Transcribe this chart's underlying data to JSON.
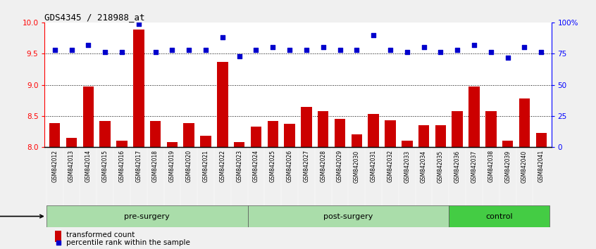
{
  "title": "GDS4345 / 218988_at",
  "samples": [
    "GSM842012",
    "GSM842013",
    "GSM842014",
    "GSM842015",
    "GSM842016",
    "GSM842017",
    "GSM842018",
    "GSM842019",
    "GSM842020",
    "GSM842021",
    "GSM842022",
    "GSM842023",
    "GSM842024",
    "GSM842025",
    "GSM842026",
    "GSM842027",
    "GSM842028",
    "GSM842029",
    "GSM842030",
    "GSM842031",
    "GSM842032",
    "GSM842033",
    "GSM842034",
    "GSM842035",
    "GSM842036",
    "GSM842037",
    "GSM842038",
    "GSM842039",
    "GSM842040",
    "GSM842041"
  ],
  "bar_values": [
    8.38,
    8.15,
    8.97,
    8.42,
    8.1,
    9.88,
    8.42,
    8.08,
    8.38,
    8.18,
    9.37,
    8.08,
    8.33,
    8.42,
    8.37,
    8.65,
    8.58,
    8.45,
    8.2,
    8.53,
    8.43,
    8.1,
    8.35,
    8.35,
    8.58,
    8.97,
    8.58,
    8.1,
    8.78,
    8.23
  ],
  "dot_values": [
    78,
    78,
    82,
    76,
    76,
    99,
    76,
    78,
    78,
    78,
    88,
    73,
    78,
    80,
    78,
    78,
    80,
    78,
    78,
    90,
    78,
    76,
    80,
    76,
    78,
    82,
    76,
    72,
    80,
    76
  ],
  "groups": [
    {
      "label": "pre-surgery",
      "start": 0,
      "end": 12,
      "color": "#aaddaa"
    },
    {
      "label": "post-surgery",
      "start": 12,
      "end": 24,
      "color": "#aaddaa"
    },
    {
      "label": "control",
      "start": 24,
      "end": 30,
      "color": "#44cc44"
    }
  ],
  "bar_color": "#cc0000",
  "dot_color": "#0000cc",
  "ylim_left": [
    8.0,
    10.0
  ],
  "ylim_right": [
    0,
    100
  ],
  "yticks_left": [
    8.0,
    8.5,
    9.0,
    9.5,
    10.0
  ],
  "yticks_right": [
    0,
    25,
    50,
    75,
    100
  ],
  "ytick_labels_right": [
    "0",
    "25",
    "50",
    "75",
    "100%"
  ],
  "grid_values": [
    8.5,
    9.0,
    9.5
  ],
  "tick_bg": "#cccccc",
  "plot_bg": "#ffffff",
  "fig_bg": "#f0f0f0"
}
